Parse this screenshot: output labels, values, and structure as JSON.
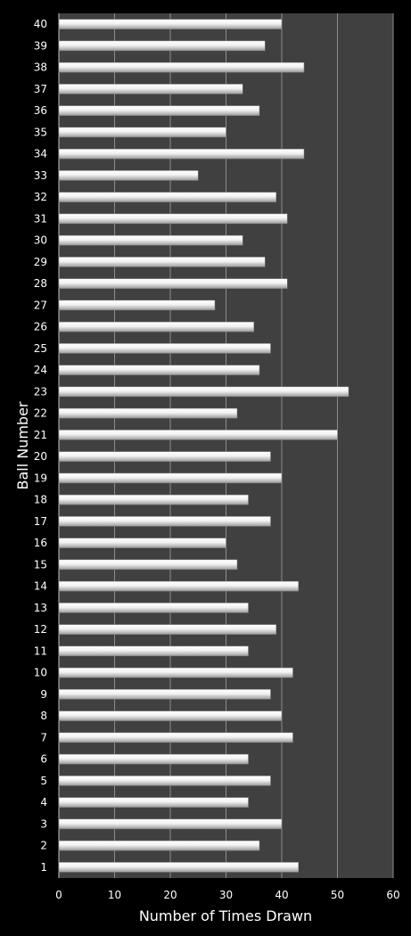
{
  "chart_data": {
    "type": "bar",
    "orientation": "horizontal",
    "xlabel": "Number of Times Drawn",
    "ylabel": "Ball Number",
    "xlim": [
      0,
      60
    ],
    "x_ticks": [
      "0",
      "10",
      "20",
      "30",
      "40",
      "50",
      "60"
    ],
    "grid": true,
    "categories": [
      "1",
      "2",
      "3",
      "4",
      "5",
      "6",
      "7",
      "8",
      "9",
      "10",
      "11",
      "12",
      "13",
      "14",
      "15",
      "16",
      "17",
      "18",
      "19",
      "20",
      "21",
      "22",
      "23",
      "24",
      "25",
      "26",
      "27",
      "28",
      "29",
      "30",
      "31",
      "32",
      "33",
      "34",
      "35",
      "36",
      "37",
      "38",
      "39",
      "40"
    ],
    "values": [
      43,
      36,
      40,
      34,
      38,
      34,
      42,
      40,
      38,
      42,
      34,
      39,
      34,
      43,
      32,
      30,
      38,
      34,
      40,
      38,
      50,
      32,
      52,
      36,
      38,
      35,
      28,
      41,
      37,
      33,
      41,
      39,
      25,
      44,
      30,
      36,
      33,
      44,
      37,
      40
    ],
    "colors": {
      "background": "#000000",
      "plot_area": "#404040",
      "gridline": "#8c8c8c",
      "bar": "#e6e6e6",
      "text": "#ffffff"
    }
  }
}
